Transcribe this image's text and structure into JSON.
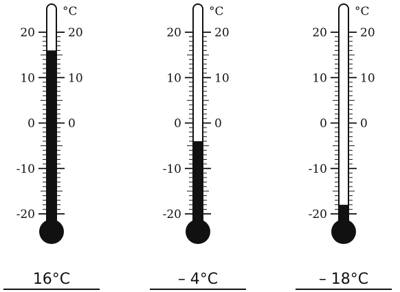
{
  "scale": {
    "unit_label": "°C",
    "min": -20,
    "max": 20,
    "labeled_ticks": [
      "20",
      "10",
      "0",
      "-10",
      "-20"
    ],
    "right_labeled_ticks": [
      "20",
      "10",
      "0"
    ]
  },
  "thermometers": [
    {
      "reading": 16,
      "caption": "16°C"
    },
    {
      "reading": -4,
      "caption": "– 4°C"
    },
    {
      "reading": -18,
      "caption": "– 18°C"
    }
  ],
  "colors": {
    "mercury": "#111111",
    "ink": "#111111",
    "background": "#ffffff"
  }
}
